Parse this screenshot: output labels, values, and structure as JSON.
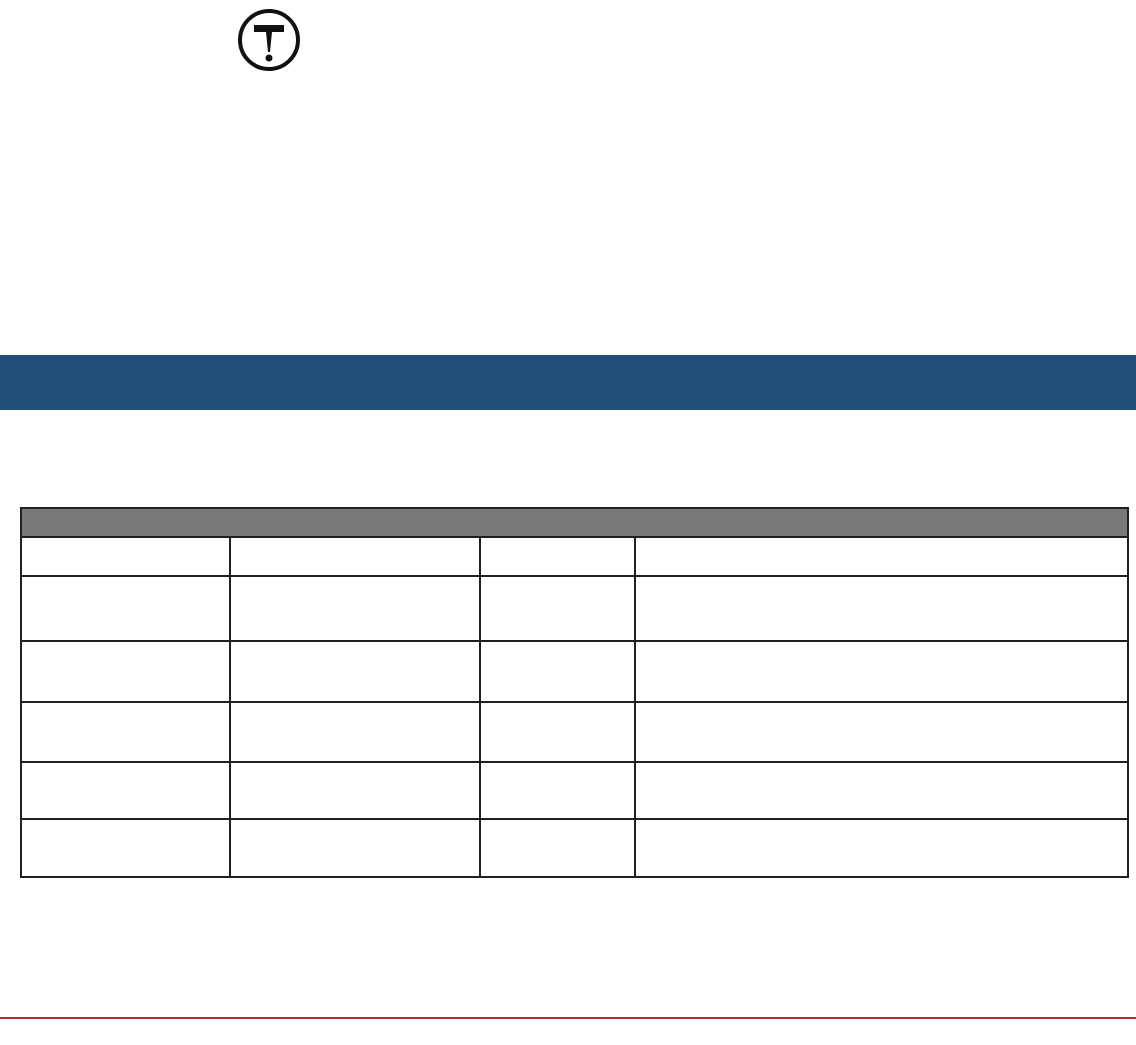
{
  "icon": {
    "name": "caution-t-icon"
  },
  "colors": {
    "section_band": "#214d78",
    "table_header": "#7a7879",
    "table_border": "#231f20",
    "footer_rule": "#c0272d"
  },
  "table": {
    "rows": [
      [
        "",
        "",
        "",
        ""
      ],
      [
        "",
        "",
        "",
        ""
      ],
      [
        "",
        "",
        "",
        ""
      ],
      [
        "",
        "",
        "",
        ""
      ],
      [
        "",
        "",
        "",
        ""
      ],
      [
        "",
        "",
        "",
        ""
      ]
    ]
  }
}
